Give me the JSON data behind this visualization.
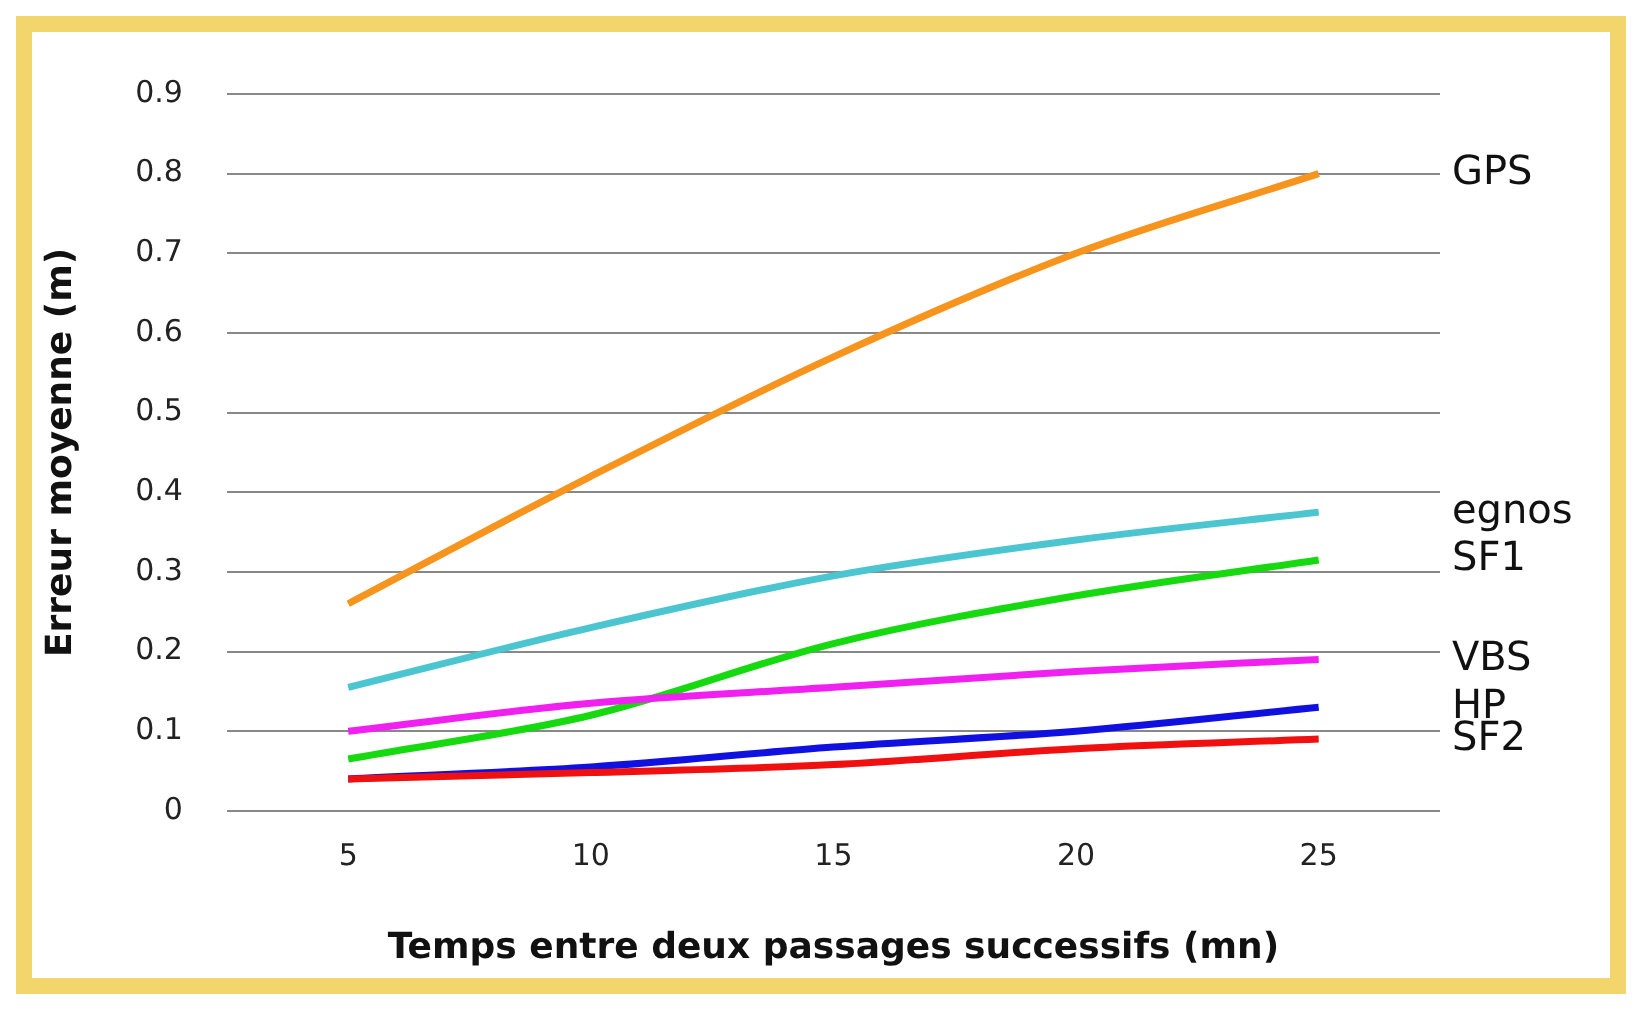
{
  "chart_data": {
    "type": "line",
    "xlabel": "Temps entre deux passages successifs (mn)",
    "ylabel": "Erreur moyenne (m)",
    "categories": [
      "5",
      "10",
      "15",
      "20",
      "25"
    ],
    "ylim": [
      0,
      0.9
    ],
    "yticks": [
      0,
      0.1,
      0.2,
      0.3,
      0.4,
      0.5,
      0.6,
      0.7,
      0.8,
      0.9
    ],
    "grid": "y",
    "legend": false,
    "marker": "none",
    "line_style": "solid",
    "series": [
      {
        "name": "GPS",
        "color": "#f7941d",
        "values": [
          0.26,
          0.42,
          0.57,
          0.7,
          0.8
        ]
      },
      {
        "name": "egnos",
        "color": "#4bc5d0",
        "values": [
          0.155,
          0.23,
          0.295,
          0.34,
          0.375
        ]
      },
      {
        "name": "SF1",
        "color": "#16d90f",
        "values": [
          0.065,
          0.12,
          0.21,
          0.27,
          0.315
        ]
      },
      {
        "name": "VBS",
        "color": "#f020f0",
        "values": [
          0.1,
          0.135,
          0.155,
          0.175,
          0.19
        ]
      },
      {
        "name": "HP",
        "color": "#1010e0",
        "values": [
          0.04,
          0.055,
          0.08,
          0.1,
          0.13
        ]
      },
      {
        "name": "SF2",
        "color": "#f01010",
        "values": [
          0.04,
          0.048,
          0.058,
          0.078,
          0.09
        ]
      }
    ]
  }
}
